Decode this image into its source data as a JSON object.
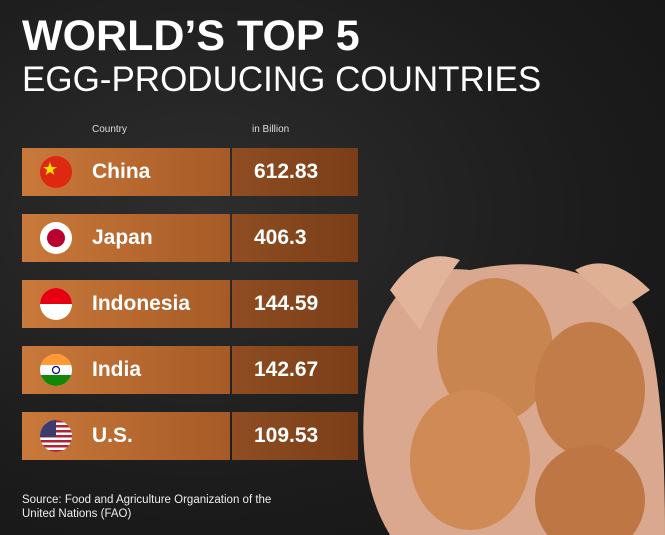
{
  "header": {
    "title": "WORLD’S TOP 5",
    "subtitle": "EGG-PRODUCING COUNTRIES"
  },
  "table": {
    "columns": [
      "Country",
      "in Billion"
    ],
    "rows": [
      [
        "China",
        612.83
      ],
      [
        "Japan",
        406.3
      ],
      [
        "Indonesia",
        144.59
      ],
      [
        "India",
        142.67
      ],
      [
        "U.S.",
        109.53
      ]
    ]
  },
  "footer": {
    "source": "Source: Food and Agriculture Organization of the United Nations (FAO)"
  }
}
